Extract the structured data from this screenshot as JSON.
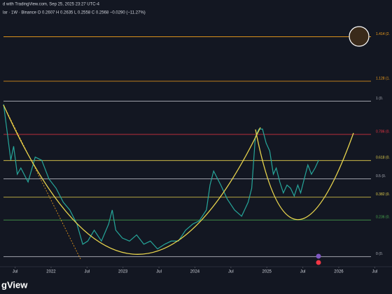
{
  "chart_data": {
    "type": "line",
    "title": "d with TradingView.com, Sep 25, 2025 23:27 UTC-4",
    "subtitle": "lar · 1W · Binance  O 0.2607  H 0.2635  L 0.2558  C 0.2568  −0.0290 (−11.27%)",
    "watermark": "gView",
    "x": [
      2021.34,
      2021.39,
      2021.44,
      2021.48,
      2021.53,
      2021.58,
      2021.68,
      2021.78,
      2021.87,
      2021.97,
      2022.07,
      2022.17,
      2022.26,
      2022.36,
      2022.44,
      2022.51,
      2022.6,
      2022.7,
      2022.8,
      2022.85,
      2022.9,
      2022.99,
      2023.09,
      2023.19,
      2023.29,
      2023.38,
      2023.48,
      2023.58,
      2023.67,
      2023.77,
      2023.87,
      2023.97,
      2024.06,
      2024.16,
      2024.21,
      2024.26,
      2024.36,
      2024.45,
      2024.55,
      2024.65,
      2024.74,
      2024.79,
      2024.84,
      2024.89,
      2024.94,
      2024.99,
      2025.04,
      2025.09,
      2025.13,
      2025.18,
      2025.23,
      2025.28,
      2025.33,
      2025.38,
      2025.43,
      2025.47,
      2025.52,
      2025.57,
      2025.62,
      2025.67,
      2025.72
    ],
    "series": [
      {
        "name": "Close",
        "color": "#26a69a",
        "values": [
          0.98,
          0.8,
          0.62,
          0.71,
          0.53,
          0.57,
          0.48,
          0.64,
          0.62,
          0.5,
          0.44,
          0.35,
          0.3,
          0.21,
          0.08,
          0.1,
          0.17,
          0.1,
          0.21,
          0.3,
          0.17,
          0.12,
          0.1,
          0.14,
          0.08,
          0.1,
          0.05,
          0.08,
          0.1,
          0.1,
          0.17,
          0.21,
          0.23,
          0.3,
          0.46,
          0.55,
          0.46,
          0.37,
          0.3,
          0.26,
          0.35,
          0.44,
          0.77,
          0.82,
          0.82,
          0.73,
          0.68,
          0.53,
          0.57,
          0.48,
          0.41,
          0.46,
          0.44,
          0.39,
          0.46,
          0.41,
          0.5,
          0.59,
          0.53,
          0.57,
          0.62
        ]
      }
    ],
    "levels": [
      {
        "value": 1.414,
        "label": "1.414 (2.",
        "color": "#f7a21b"
      },
      {
        "value": 1.128,
        "label": "1.128 (1.",
        "color": "#f7a21b"
      },
      {
        "value": 1,
        "label": "1 (0.",
        "color": "#b2b5be"
      },
      {
        "value": 0.786,
        "label": "0.786 (0.",
        "color": "#f23645"
      },
      {
        "value": 0.618,
        "label": "0.618 (0.",
        "color": "#e8d44d"
      },
      {
        "value": 0.5,
        "label": "0.5 (0.",
        "color": "#b2b5be"
      },
      {
        "value": 0.382,
        "label": "0.382 (0.",
        "color": "#e8d44d"
      },
      {
        "value": 0.236,
        "label": "0.236 (0.",
        "color": "#4caf50"
      },
      {
        "value": 0,
        "label": "0 (0.",
        "color": "#b2b5be"
      }
    ],
    "xlim": [
      2021.29,
      2026.74
    ],
    "ylim": [
      -0.06,
      1.65
    ],
    "xticks": [
      {
        "value": 2021.5,
        "label": "Jul"
      },
      2022,
      {
        "value": 2022.5,
        "label": "Jul"
      },
      2023,
      {
        "value": 2023.5,
        "label": "Jul"
      },
      2024,
      {
        "value": 2024.5,
        "label": "Jul"
      },
      2025,
      {
        "value": 2025.5,
        "label": "Jul"
      },
      2026,
      {
        "value": 2026.5,
        "label": "Jul"
      }
    ]
  }
}
